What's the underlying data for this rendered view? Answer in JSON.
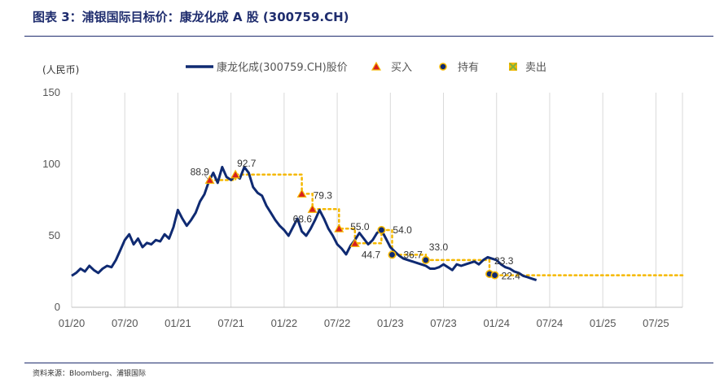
{
  "figure": {
    "title": "图表 3：浦银国际目标价：康龙化成 A 股 (300759.CH)",
    "source": "资料来源：Bloomberg、浦银国际"
  },
  "chart_data": {
    "type": "line",
    "title": "",
    "ylabel": "(人民币)",
    "ylim": [
      0,
      150
    ],
    "yticks": [
      0,
      50,
      100,
      150
    ],
    "xticks": [
      "01/20",
      "07/20",
      "01/21",
      "07/21",
      "01/22",
      "07/22",
      "01/23",
      "07/23",
      "01/24",
      "07/24",
      "01/25",
      "07/25"
    ],
    "xlim": [
      0,
      69
    ],
    "grid": "vertical",
    "legend": {
      "placement": "top",
      "entries": [
        {
          "label": "康龙化成(300759.CH)股价",
          "type": "line",
          "color": "#0f2a72"
        },
        {
          "label": "买入",
          "type": "triangle",
          "color": "#d81f1f"
        },
        {
          "label": "持有",
          "type": "circle",
          "color": "#0f2a72"
        },
        {
          "label": "卖出",
          "type": "cross-square",
          "color": "#7cb342"
        }
      ]
    },
    "series": [
      {
        "name": "康龙化成(300759.CH)股价",
        "color": "#0f2a72",
        "x": [
          0,
          0.5,
          1,
          1.5,
          2,
          2.5,
          3,
          3.5,
          4,
          4.5,
          5,
          5.5,
          6,
          6.5,
          7,
          7.5,
          8,
          8.5,
          9,
          9.5,
          10,
          10.5,
          11,
          11.5,
          12,
          12.5,
          13,
          13.5,
          14,
          14.5,
          15,
          15.5,
          16,
          16.5,
          17,
          17.5,
          18,
          18.5,
          19,
          19.5,
          20,
          20.5,
          21,
          21.5,
          22,
          22.5,
          23,
          23.5,
          24,
          24.5,
          25,
          25.5,
          26,
          26.5,
          27,
          27.5,
          28,
          28.5,
          29,
          29.5,
          30,
          30.5,
          31,
          31.5,
          32,
          32.5,
          33,
          33.5,
          34,
          34.5,
          35,
          35.5,
          36,
          36.5,
          37,
          37.5,
          38,
          38.5,
          39,
          39.5,
          40,
          40.5,
          41,
          41.5,
          42,
          42.5,
          43,
          43.5,
          44,
          44.5,
          45,
          45.5,
          46,
          46.5,
          47,
          47.5,
          48,
          48.5,
          49,
          49.5,
          50,
          50.5,
          51,
          51.5,
          52,
          52.5
        ],
        "values": [
          22,
          24,
          27,
          25,
          29,
          26,
          24,
          27,
          29,
          28,
          33,
          40,
          47,
          51,
          44,
          48,
          42,
          45,
          44,
          47,
          46,
          51,
          48,
          56,
          68,
          62,
          57,
          61,
          66,
          74,
          79,
          88,
          94,
          87,
          98,
          91,
          89,
          92,
          90,
          98,
          94,
          84,
          80,
          78,
          71,
          66,
          61,
          57,
          54,
          50,
          56,
          62,
          53,
          50,
          55,
          61,
          68,
          62,
          55,
          50,
          44,
          41,
          37,
          43,
          47,
          52,
          48,
          44,
          47,
          52,
          54,
          48,
          42,
          39,
          36,
          34,
          33,
          32,
          31,
          30,
          29,
          27,
          27,
          28,
          30,
          28,
          26,
          30,
          29,
          30,
          31,
          32,
          30,
          33,
          35,
          34,
          33,
          30,
          28,
          27,
          25,
          24,
          22,
          21,
          20,
          19
        ]
      }
    ],
    "target_price_path": {
      "color": "#f5b800",
      "x": [
        15.6,
        18.5,
        18.5,
        26.0,
        26.0,
        27.2,
        27.2,
        30.2,
        30.2,
        32.0,
        32.0,
        35.0,
        35.0,
        36.2,
        36.2,
        40.0,
        40.0,
        47.2,
        47.2,
        47.8,
        47.8,
        69.0
      ],
      "values": [
        88.9,
        88.9,
        92.7,
        92.7,
        79.3,
        79.3,
        68.6,
        68.6,
        55.0,
        55.0,
        44.7,
        44.7,
        54.0,
        54.0,
        36.7,
        36.7,
        33.0,
        33.0,
        23.3,
        23.3,
        22.4,
        22.4
      ]
    },
    "ratings": [
      {
        "x": 15.6,
        "value": 88.9,
        "rating": "买入",
        "label": "88.9"
      },
      {
        "x": 18.5,
        "value": 92.7,
        "rating": "买入",
        "label": "92.7"
      },
      {
        "x": 26.0,
        "value": 79.3,
        "rating": "买入",
        "label": "79.3"
      },
      {
        "x": 27.2,
        "value": 68.6,
        "rating": "买入",
        "label": "68.6"
      },
      {
        "x": 30.2,
        "value": 55.0,
        "rating": "买入",
        "label": "55.0"
      },
      {
        "x": 32.0,
        "value": 44.7,
        "rating": "买入",
        "label": "44.7"
      },
      {
        "x": 35.0,
        "value": 54.0,
        "rating": "持有",
        "label": "54.0"
      },
      {
        "x": 36.2,
        "value": 36.7,
        "rating": "持有",
        "label": "36.7"
      },
      {
        "x": 40.0,
        "value": 33.0,
        "rating": "持有",
        "label": "33.0"
      },
      {
        "x": 47.2,
        "value": 23.3,
        "rating": "持有",
        "label": "23.3"
      },
      {
        "x": 47.8,
        "value": 22.4,
        "rating": "持有",
        "label": "22.4"
      }
    ]
  }
}
